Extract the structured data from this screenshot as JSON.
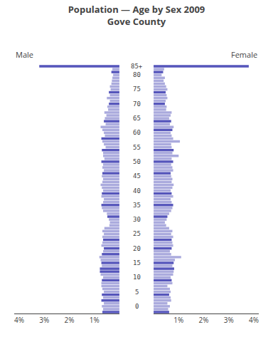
{
  "chart_data": {
    "type": "bar",
    "orientation": "horizontal",
    "title": "Population — Age by Sex 2009",
    "subtitle": "Gove County",
    "grid": false,
    "categories": [
      null,
      null,
      "0",
      null,
      null,
      null,
      null,
      "5",
      null,
      null,
      null,
      null,
      "10",
      null,
      null,
      null,
      null,
      "15",
      null,
      null,
      null,
      null,
      "20",
      null,
      null,
      null,
      null,
      "25",
      null,
      null,
      null,
      null,
      "30",
      null,
      null,
      null,
      null,
      "35",
      null,
      null,
      null,
      null,
      "40",
      null,
      null,
      null,
      null,
      "45",
      null,
      null,
      null,
      null,
      "50",
      null,
      null,
      null,
      null,
      "55",
      null,
      null,
      null,
      null,
      "60",
      null,
      null,
      null,
      null,
      "65",
      null,
      null,
      null,
      null,
      "70",
      null,
      null,
      null,
      null,
      "75",
      null,
      null,
      null,
      null,
      "80",
      null,
      null,
      "85+"
    ],
    "xlim": [
      0,
      4.2
    ],
    "xticks": [
      {
        "value": 1,
        "label": "1%"
      },
      {
        "value": 2,
        "label": "2%"
      },
      {
        "value": 3,
        "label": "3%"
      },
      {
        "value": 4,
        "label": "4%"
      }
    ],
    "series": [
      {
        "name": "Male",
        "values": [
          0.68,
          0.65,
          0.7,
          0.62,
          0.72,
          0.65,
          0.7,
          0.62,
          0.68,
          0.72,
          0.72,
          0.7,
          0.65,
          0.75,
          0.78,
          0.78,
          0.7,
          0.72,
          0.75,
          0.8,
          0.7,
          0.65,
          0.62,
          0.72,
          0.68,
          0.65,
          0.68,
          0.62,
          0.68,
          0.6,
          0.4,
          0.38,
          0.42,
          0.48,
          0.5,
          0.65,
          0.7,
          0.72,
          0.65,
          0.62,
          0.72,
          0.7,
          0.65,
          0.7,
          0.75,
          0.68,
          0.65,
          0.7,
          0.68,
          0.62,
          0.68,
          0.65,
          0.72,
          0.6,
          0.65,
          0.65,
          0.7,
          0.55,
          0.62,
          0.68,
          0.72,
          0.58,
          0.62,
          0.68,
          0.75,
          0.55,
          0.62,
          0.58,
          0.52,
          0.6,
          0.45,
          0.48,
          0.42,
          0.38,
          0.5,
          0.38,
          0.42,
          0.35,
          0.38,
          0.32,
          0.3,
          0.28,
          0.25,
          0.32,
          0.28,
          3.2
        ],
        "colors": [
          "#5555bb",
          "#aaaadd",
          "#aaaadd",
          "#aaaadd",
          "#5555bb",
          "#aaaadd",
          "#5555bb",
          "#aaaadd",
          "#aaaadd",
          "#aaaadd",
          "#aaaadd",
          "#5555bb",
          "#aaaadd",
          "#aaaadd",
          "#5555bb",
          "#5555bb",
          "#aaaadd",
          "#5555bb",
          "#aaaadd",
          "#aaaadd",
          "#5555bb",
          "#aaaadd",
          "#5555bb",
          "#aaaadd",
          "#aaaadd",
          "#5555bb",
          "#aaaadd",
          "#aaaadd",
          "#aaaadd",
          "#aaaadd",
          "#aaaadd",
          "#aaaadd",
          "#aaaadd",
          "#5555bb",
          "#aaaadd",
          "#aaaadd",
          "#aaaadd",
          "#5555bb",
          "#aaaadd",
          "#aaaadd",
          "#aaaadd",
          "#5555bb",
          "#aaaadd",
          "#aaaadd",
          "#aaaadd",
          "#aaaadd",
          "#aaaadd",
          "#aaaadd",
          "#5555bb",
          "#aaaadd",
          "#aaaadd",
          "#aaaadd",
          "#5555bb",
          "#aaaadd",
          "#aaaadd",
          "#aaaadd",
          "#5555bb",
          "#aaaadd",
          "#aaaadd",
          "#aaaadd",
          "#5555bb",
          "#aaaadd",
          "#aaaadd",
          "#aaaadd",
          "#aaaadd",
          "#aaaadd",
          "#5555bb",
          "#aaaadd",
          "#aaaadd",
          "#aaaadd",
          "#aaaadd",
          "#aaaadd",
          "#5555bb",
          "#aaaadd",
          "#aaaadd",
          "#aaaadd",
          "#5555bb",
          "#aaaadd",
          "#aaaadd",
          "#aaaadd",
          "#aaaadd",
          "#aaaadd",
          "#aaaadd",
          "#5555bb",
          "#aaaadd",
          "#5555bb"
        ]
      },
      {
        "name": "Female",
        "values": [
          0.62,
          0.58,
          0.65,
          0.55,
          0.7,
          0.68,
          0.62,
          0.68,
          0.65,
          0.55,
          0.75,
          0.72,
          0.68,
          0.78,
          0.8,
          0.82,
          0.75,
          0.8,
          0.85,
          1.1,
          0.7,
          0.65,
          0.72,
          0.78,
          0.75,
          0.72,
          0.78,
          0.7,
          0.75,
          0.62,
          0.5,
          0.45,
          0.52,
          0.55,
          0.62,
          0.7,
          0.75,
          0.78,
          0.72,
          0.68,
          0.78,
          0.72,
          0.68,
          0.75,
          0.8,
          0.72,
          0.75,
          0.7,
          0.68,
          0.78,
          0.75,
          0.7,
          0.78,
          0.72,
          1.0,
          0.75,
          0.8,
          0.72,
          0.7,
          1.05,
          0.78,
          0.72,
          0.68,
          0.75,
          0.8,
          0.65,
          0.7,
          0.62,
          0.68,
          0.72,
          0.5,
          0.52,
          0.45,
          0.48,
          0.55,
          0.52,
          0.48,
          0.55,
          0.5,
          0.45,
          0.4,
          0.45,
          0.32,
          0.38,
          0.42,
          3.8
        ],
        "colors": [
          "#5555bb",
          "#aaaadd",
          "#aaaadd",
          "#aaaadd",
          "#aaaadd",
          "#aaaadd",
          "#5555bb",
          "#aaaadd",
          "#aaaadd",
          "#aaaadd",
          "#aaaadd",
          "#5555bb",
          "#aaaadd",
          "#aaaadd",
          "#aaaadd",
          "#5555bb",
          "#aaaadd",
          "#5555bb",
          "#aaaadd",
          "#aaaadd",
          "#aaaadd",
          "#aaaadd",
          "#5555bb",
          "#aaaadd",
          "#aaaadd",
          "#5555bb",
          "#aaaadd",
          "#aaaadd",
          "#aaaadd",
          "#aaaadd",
          "#aaaadd",
          "#aaaadd",
          "#aaaadd",
          "#5555bb",
          "#aaaadd",
          "#aaaadd",
          "#aaaadd",
          "#5555bb",
          "#aaaadd",
          "#aaaadd",
          "#aaaadd",
          "#5555bb",
          "#aaaadd",
          "#aaaadd",
          "#aaaadd",
          "#aaaadd",
          "#aaaadd",
          "#aaaadd",
          "#5555bb",
          "#aaaadd",
          "#aaaadd",
          "#aaaadd",
          "#5555bb",
          "#aaaadd",
          "#aaaadd",
          "#aaaadd",
          "#5555bb",
          "#aaaadd",
          "#aaaadd",
          "#aaaadd",
          "#aaaadd",
          "#aaaadd",
          "#aaaadd",
          "#5555bb",
          "#aaaadd",
          "#aaaadd",
          "#5555bb",
          "#aaaadd",
          "#aaaadd",
          "#aaaadd",
          "#aaaadd",
          "#aaaadd",
          "#5555bb",
          "#aaaadd",
          "#aaaadd",
          "#aaaadd",
          "#5555bb",
          "#aaaadd",
          "#aaaadd",
          "#aaaadd",
          "#aaaadd",
          "#aaaadd",
          "#aaaadd",
          "#5555bb",
          "#aaaadd",
          "#5555bb"
        ]
      }
    ]
  }
}
